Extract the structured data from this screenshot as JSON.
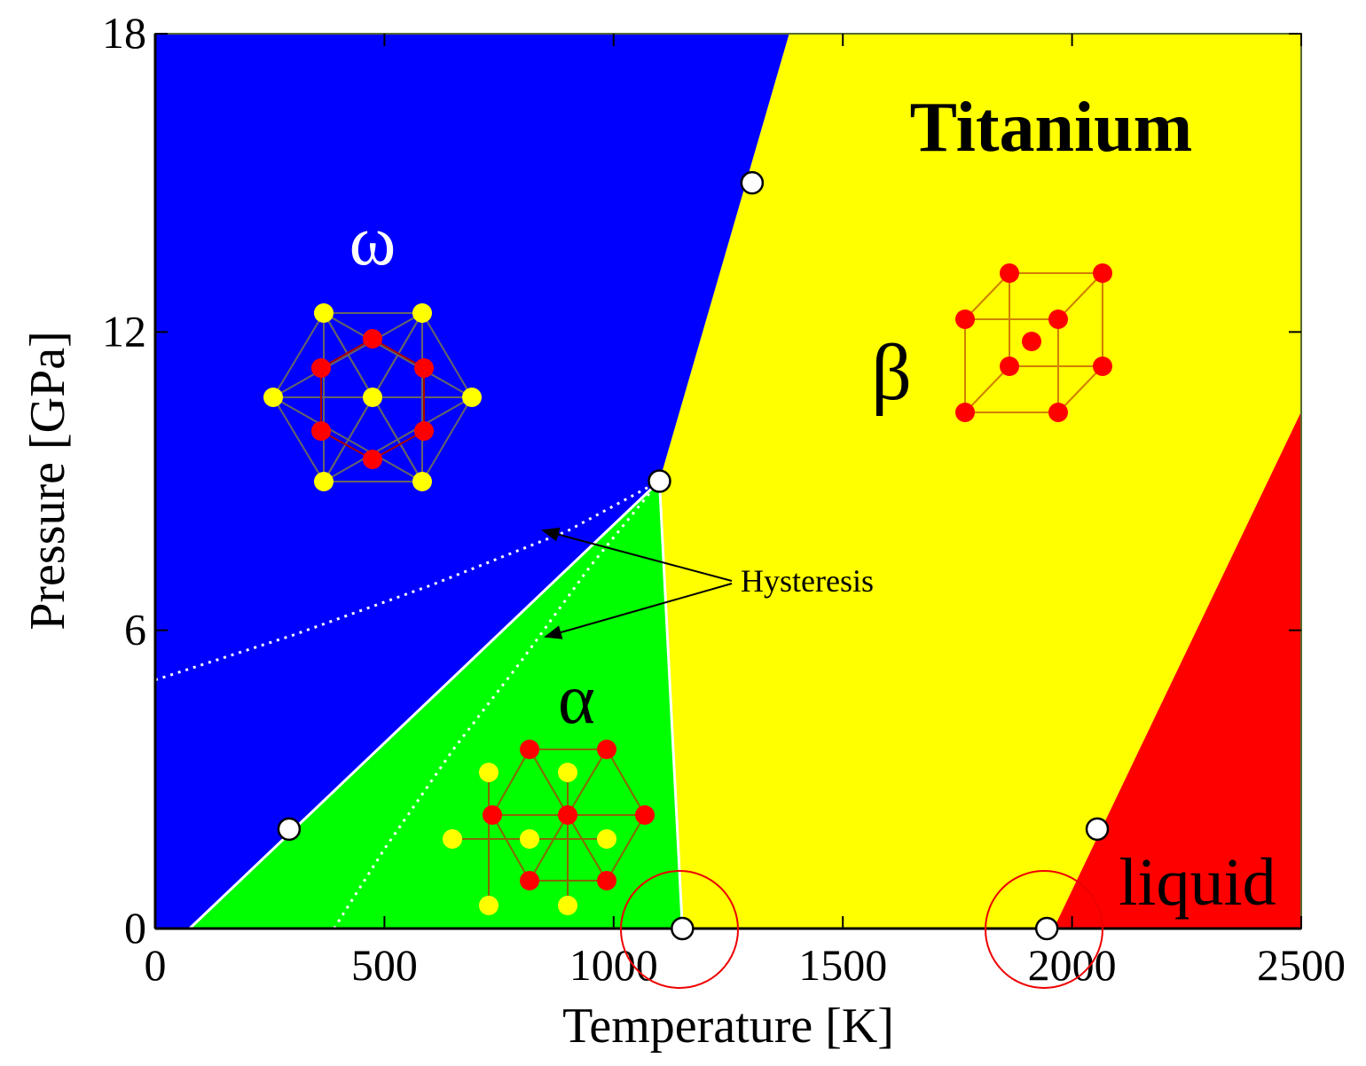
{
  "chart_data": {
    "type": "area",
    "title": "Titanium",
    "x_label": "Temperature [K]",
    "y_label": "Pressure [GPa]",
    "xlim": [
      0,
      2500
    ],
    "ylim": [
      0,
      18
    ],
    "xticks": [
      0,
      500,
      1000,
      1500,
      2000,
      2500
    ],
    "yticks": [
      0,
      6,
      12,
      18
    ],
    "regions": [
      {
        "name": "ω",
        "color": "#0000ff",
        "x": [
          0,
          0,
          1383,
          1100,
          75
        ],
        "y": [
          0,
          18,
          18,
          9.0,
          0
        ]
      },
      {
        "name": "α",
        "color": "#00ff00",
        "x": [
          75,
          1100,
          1150
        ],
        "y": [
          0,
          9.0,
          0
        ]
      },
      {
        "name": "β",
        "color": "#ffff00",
        "x": [
          1150,
          1100,
          1383,
          2500,
          2500,
          1960
        ],
        "y": [
          0,
          9.0,
          18,
          18,
          10.4,
          0
        ]
      },
      {
        "name": "liquid",
        "color": "#ff0000",
        "x": [
          1960,
          2500,
          2500
        ],
        "y": [
          0,
          10.4,
          0
        ]
      }
    ],
    "hysteresis": {
      "label": "Hysteresis",
      "series": [
        {
          "x": [
            0,
            300,
            600,
            900,
            1100
          ],
          "y": [
            5.0,
            5.9,
            6.9,
            8.0,
            9.0
          ]
        },
        {
          "x": [
            390,
            500,
            650,
            800,
            950,
            1100
          ],
          "y": [
            0,
            1.6,
            3.6,
            5.4,
            7.3,
            9.0
          ]
        }
      ]
    },
    "points": {
      "x": [
        292,
        1100,
        1302,
        1150,
        1945,
        2055
      ],
      "y": [
        2.0,
        9.0,
        15.0,
        0,
        0,
        2.0
      ]
    }
  }
}
